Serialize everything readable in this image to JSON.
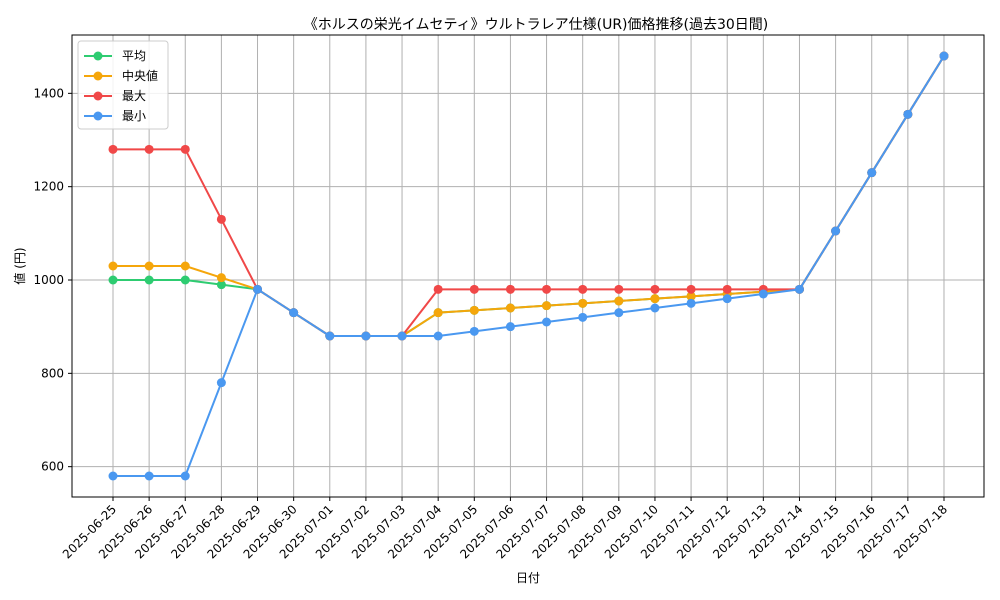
{
  "chart_data": {
    "type": "line",
    "title": "《ホルスの栄光イムセティ》ウルトラレア仕様(UR)価格推移(過去30日間)",
    "xlabel": "日付",
    "ylabel": "値 (円)",
    "ylim": [
      535,
      1525
    ],
    "yticks": [
      600,
      800,
      1000,
      1200,
      1400
    ],
    "grid": true,
    "legend_position": "top-left",
    "categories": [
      "2025-06-25",
      "2025-06-26",
      "2025-06-27",
      "2025-06-28",
      "2025-06-29",
      "2025-06-30",
      "2025-07-01",
      "2025-07-02",
      "2025-07-03",
      "2025-07-04",
      "2025-07-05",
      "2025-07-06",
      "2025-07-07",
      "2025-07-08",
      "2025-07-09",
      "2025-07-10",
      "2025-07-11",
      "2025-07-12",
      "2025-07-13",
      "2025-07-14",
      "2025-07-15",
      "2025-07-16",
      "2025-07-17",
      "2025-07-18"
    ],
    "series": [
      {
        "name": "平均",
        "color": "#2ecc71",
        "values": [
          1000,
          1000,
          1000,
          990,
          980,
          930,
          880,
          880,
          880,
          930,
          935,
          940,
          945,
          950,
          955,
          960,
          965,
          970,
          975,
          980,
          1105,
          1230,
          1355,
          1480
        ]
      },
      {
        "name": "中央値",
        "color": "#f5a60b",
        "values": [
          1030,
          1030,
          1030,
          1005,
          980,
          930,
          880,
          880,
          880,
          930,
          935,
          940,
          945,
          950,
          955,
          960,
          965,
          970,
          975,
          980,
          1105,
          1230,
          1355,
          1480
        ]
      },
      {
        "name": "最大",
        "color": "#f04848",
        "values": [
          1280,
          1280,
          1280,
          1130,
          980,
          930,
          880,
          880,
          880,
          980,
          980,
          980,
          980,
          980,
          980,
          980,
          980,
          980,
          980,
          980,
          1105,
          1230,
          1355,
          1480
        ]
      },
      {
        "name": "最小",
        "color": "#4a98f0",
        "values": [
          580,
          580,
          580,
          780,
          980,
          930,
          880,
          880,
          880,
          880,
          890,
          900,
          910,
          920,
          930,
          940,
          950,
          960,
          970,
          980,
          1105,
          1230,
          1355,
          1480
        ]
      }
    ]
  }
}
